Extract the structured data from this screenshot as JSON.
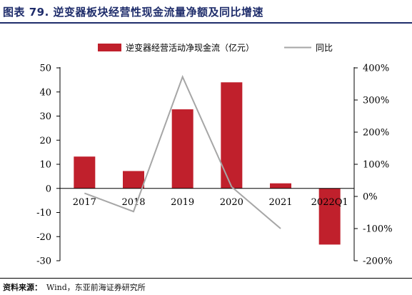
{
  "page": {
    "title": "图表 79. 逆变器板块经营性现金流量净额及同比增速",
    "source_label": "资料来源：",
    "source_text": "Wind，东亚前海证券研究所"
  },
  "chart_data": {
    "type": "bar",
    "categories": [
      "2017",
      "2018",
      "2019",
      "2020",
      "2021",
      "2022Q1"
    ],
    "series": [
      {
        "name": "逆变器经营活动净现金流（亿元）",
        "type": "bar",
        "axis": "left",
        "values": [
          13.2,
          7.2,
          32.8,
          44.0,
          2.1,
          -23.3
        ],
        "color": "#c0202c"
      },
      {
        "name": "同比",
        "type": "line",
        "axis": "right",
        "values": [
          10,
          -47,
          372,
          30,
          -100,
          null
        ],
        "color": "#a6a6a6"
      }
    ],
    "ylim": [
      -30,
      50
    ],
    "yticks": [
      -30,
      -20,
      -10,
      0,
      10,
      20,
      30,
      40,
      50
    ],
    "y2lim": [
      -200,
      400
    ],
    "y2ticks": [
      "-200%",
      "-100%",
      "0%",
      "100%",
      "200%",
      "300%",
      "400%"
    ],
    "legend_position": "top"
  }
}
